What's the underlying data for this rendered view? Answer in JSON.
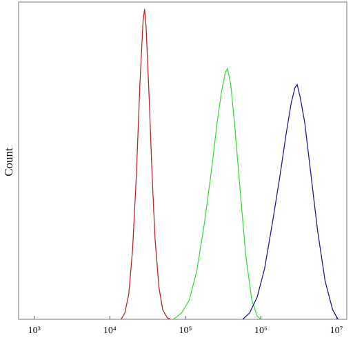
{
  "chart_data": {
    "type": "line",
    "y_label": "Count",
    "xscale": "log",
    "xlim": [
      620,
      13700000
    ],
    "ylim": [
      0,
      100
    ],
    "xticks": [
      {
        "value": 1000,
        "label": "10³"
      },
      {
        "value": 10000,
        "label": "10⁴"
      },
      {
        "value": 100000,
        "label": "10⁵"
      },
      {
        "value": 1000000,
        "label": "10⁶"
      },
      {
        "value": 10000000,
        "label": "10⁷"
      }
    ],
    "series": [
      {
        "color": "#b8282a",
        "x": [
          14100,
          15800,
          17800,
          20000,
          22400,
          25100,
          27500,
          28800,
          30200,
          33100,
          36300,
          39800,
          44700,
          50100,
          57500,
          63100
        ],
        "values": [
          0,
          2,
          8,
          22,
          45,
          75,
          94,
          97.8,
          92,
          70,
          45,
          25,
          10,
          3,
          0.5,
          0
        ]
      },
      {
        "color": "#3ddc3d",
        "x": [
          69200,
          89100,
          112000,
          141000,
          178000,
          224000,
          263000,
          302000,
          339000,
          363000,
          398000,
          447000,
          525000,
          631000,
          759000,
          891000,
          1000000
        ],
        "values": [
          0,
          2,
          6,
          15,
          30,
          48,
          62,
          72,
          78,
          79,
          74,
          62,
          42,
          20,
          6,
          1,
          0
        ]
      },
      {
        "color": "#1c1c9a",
        "x": [
          575000,
          708000,
          891000,
          1120000,
          1410000,
          1780000,
          2140000,
          2510000,
          2820000,
          3020000,
          3310000,
          3800000,
          4570000,
          5620000,
          7080000,
          8910000,
          10500000
        ],
        "values": [
          0,
          2,
          7,
          16,
          30,
          45,
          58,
          68,
          73,
          74,
          70,
          62,
          46,
          28,
          12,
          3,
          0
        ]
      }
    ]
  }
}
